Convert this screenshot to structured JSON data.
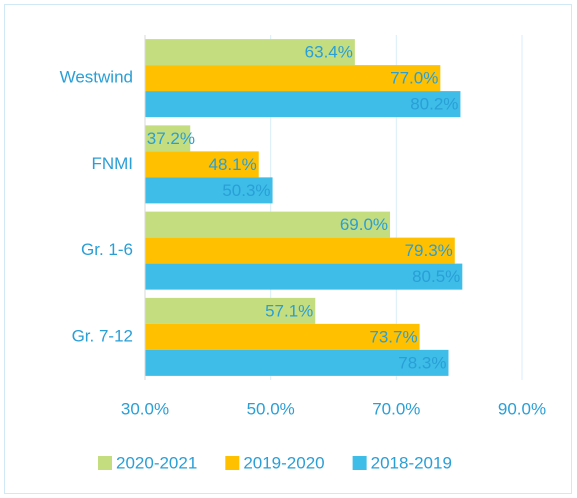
{
  "chart_data": {
    "type": "hbar",
    "categories": [
      "Westwind",
      "FNMI",
      "Gr. 1-6",
      "Gr. 7-12"
    ],
    "series": [
      {
        "name": "2020-2021",
        "color": "#c4dd7f",
        "values": [
          63.4,
          37.2,
          69.0,
          57.1
        ],
        "value_labels": [
          "63.4%",
          "37.2%",
          "69.0%",
          "57.1%"
        ]
      },
      {
        "name": "2019-2020",
        "color": "#ffc000",
        "values": [
          77.0,
          48.1,
          79.3,
          73.7
        ],
        "value_labels": [
          "77.0%",
          "48.1%",
          "79.3%",
          "73.7%"
        ]
      },
      {
        "name": "2018-2019",
        "color": "#3dbde8",
        "values": [
          80.2,
          50.3,
          80.5,
          78.3
        ],
        "value_labels": [
          "80.2%",
          "50.3%",
          "80.5%",
          "78.3%"
        ]
      }
    ],
    "xlim": [
      30,
      90
    ],
    "xticks": [
      {
        "value": 30,
        "label": "30.0%"
      },
      {
        "value": 50,
        "label": "50.0%"
      },
      {
        "value": 70,
        "label": "70.0%"
      },
      {
        "value": 90,
        "label": "90.0%"
      }
    ],
    "grid": true,
    "legend": "bottom"
  }
}
